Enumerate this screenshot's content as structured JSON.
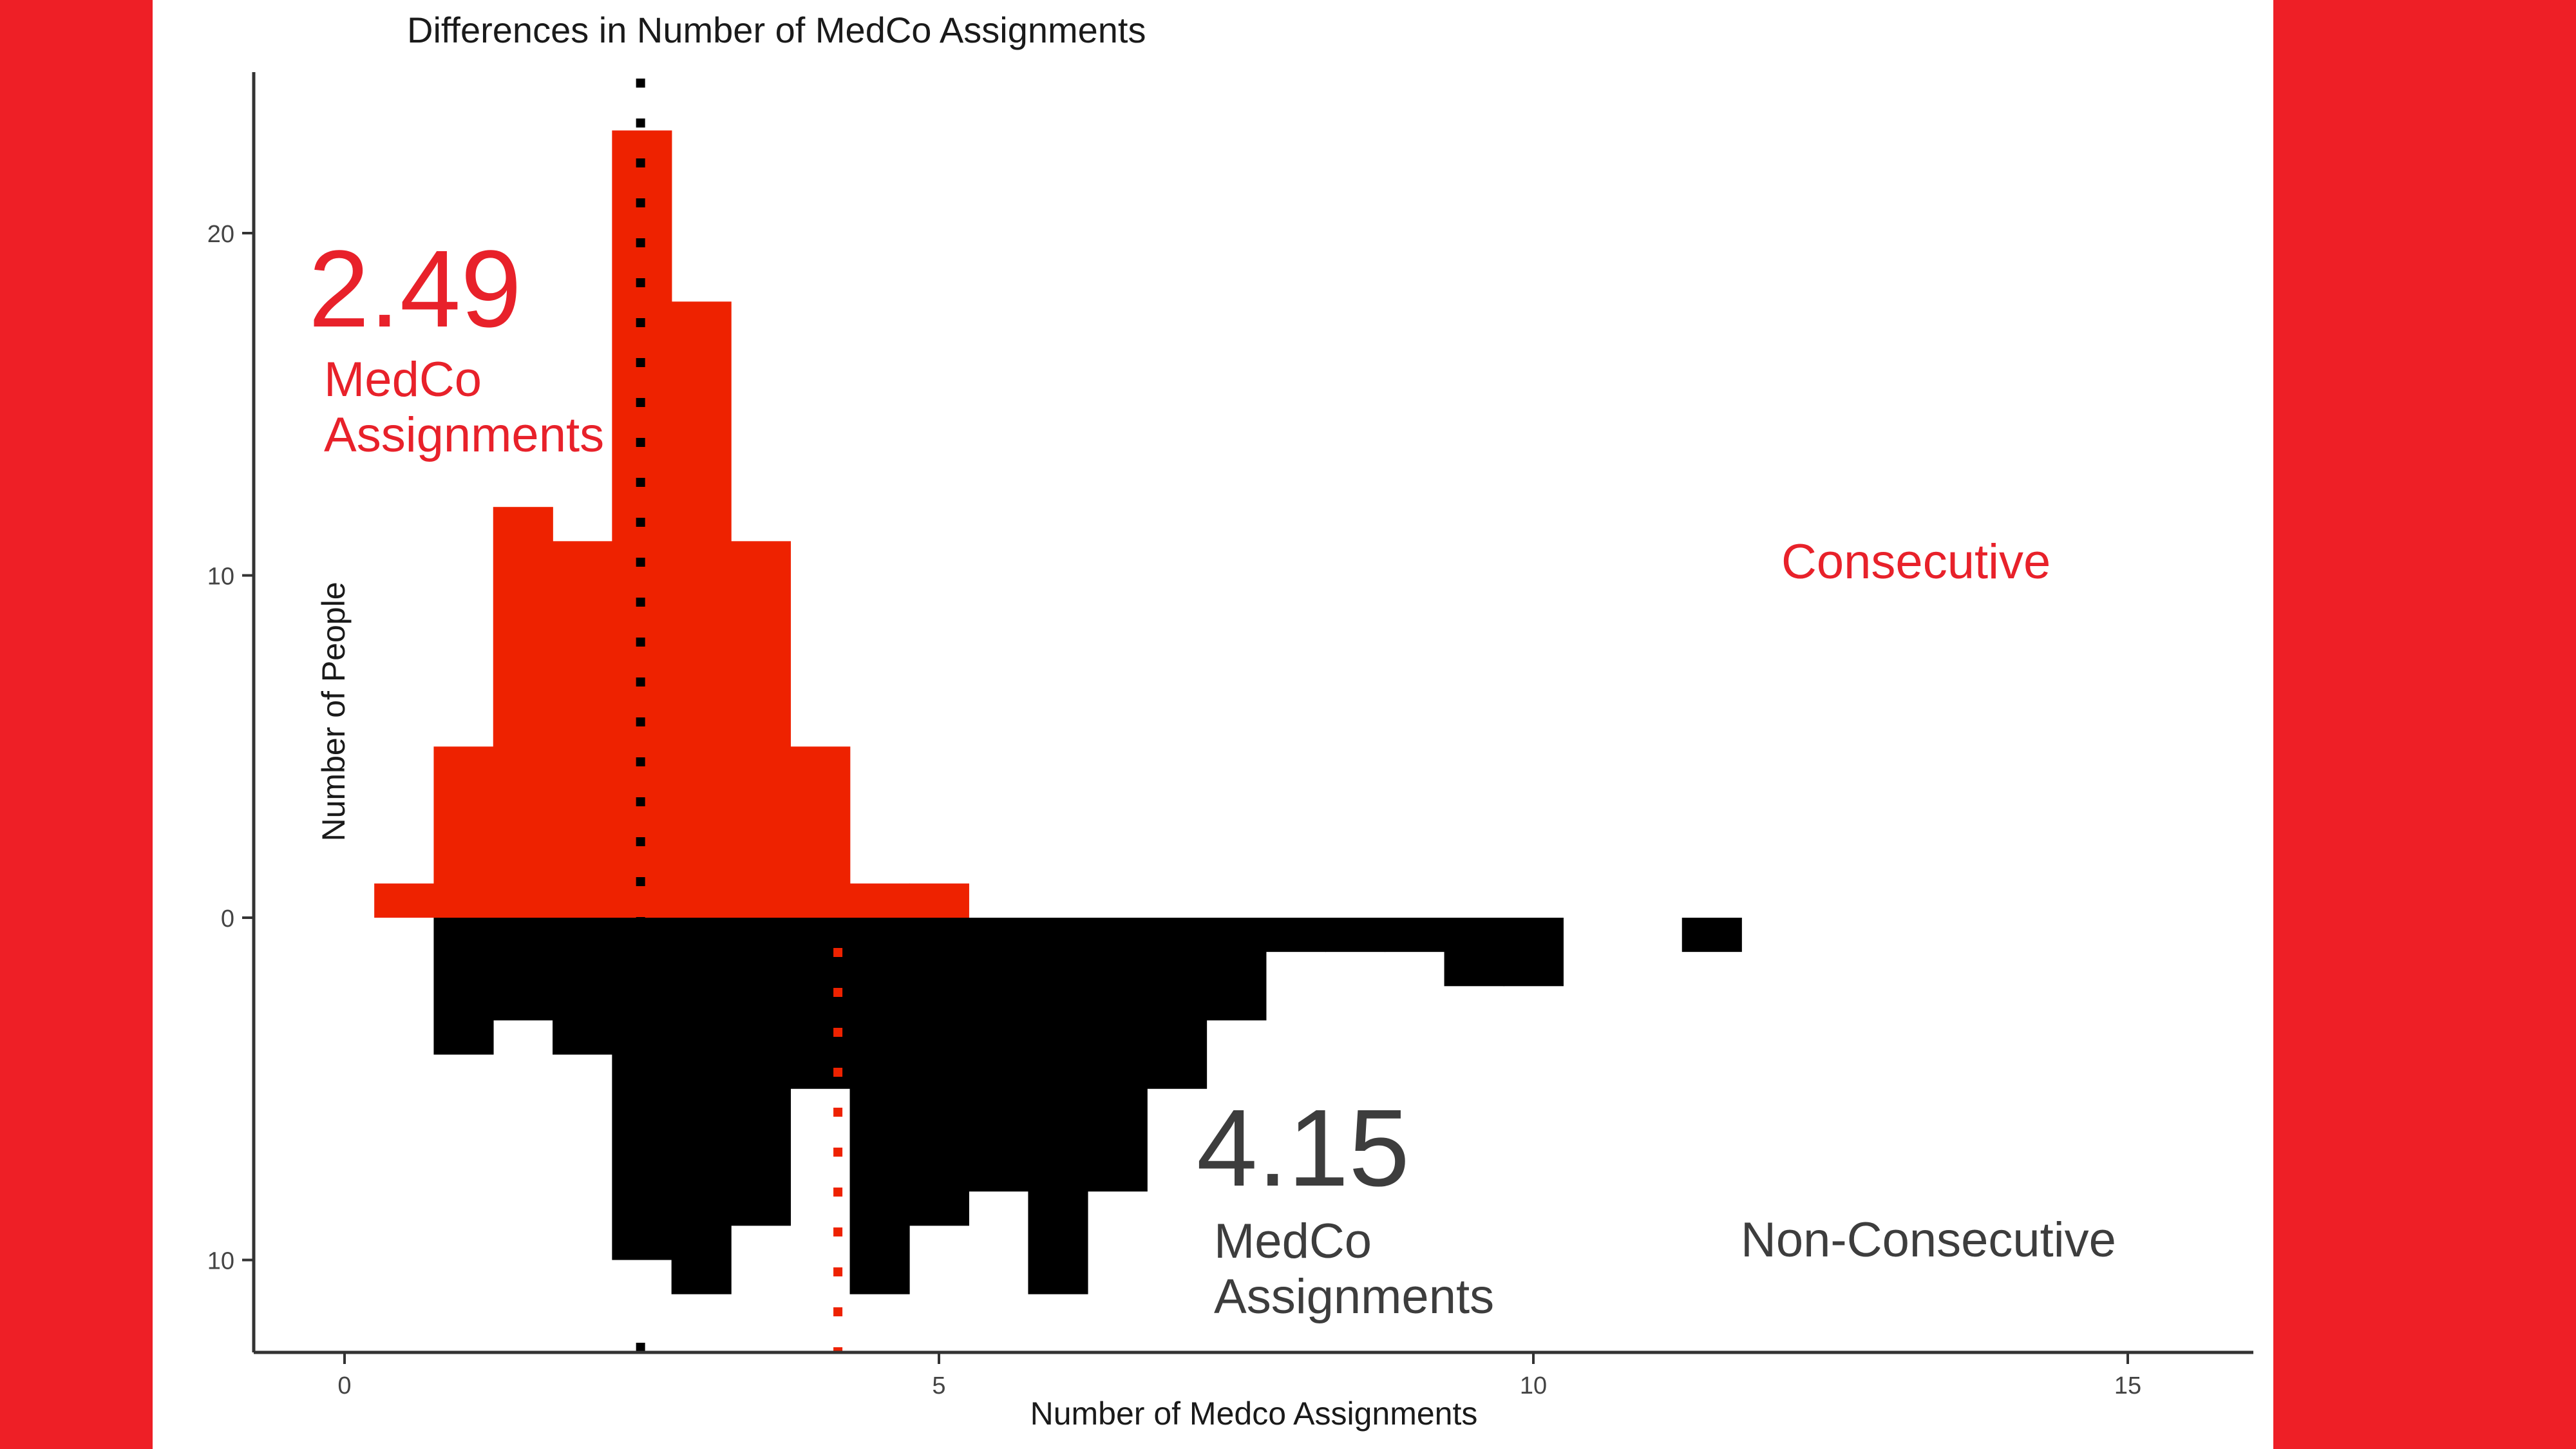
{
  "chart_data": {
    "type": "bar",
    "title": "Differences in Number of MedCo Assignments",
    "xlabel": "Number of Medco Assignments",
    "ylabel": "Number of People",
    "xlim": [
      -1.5,
      15.5
    ],
    "ylim_top": [
      0,
      25
    ],
    "ylim_bottom": [
      0,
      12.5
    ],
    "xticks": [
      0,
      5,
      10,
      15
    ],
    "yticks_top": [
      0,
      10,
      20
    ],
    "yticks_bottom": [
      10
    ],
    "grid": false,
    "legend": "none",
    "bin_width": 0.5,
    "series": [
      {
        "name": "Consecutive",
        "color": "#ee2200",
        "mean": 2.49,
        "mean_line_color": "#000000",
        "bins": [
          {
            "x": 0.5,
            "count": 1
          },
          {
            "x": 1.0,
            "count": 5
          },
          {
            "x": 1.5,
            "count": 12
          },
          {
            "x": 2.0,
            "count": 11
          },
          {
            "x": 2.5,
            "count": 23
          },
          {
            "x": 3.0,
            "count": 18
          },
          {
            "x": 3.5,
            "count": 11
          },
          {
            "x": 4.0,
            "count": 5
          },
          {
            "x": 4.5,
            "count": 1
          },
          {
            "x": 5.0,
            "count": 1
          }
        ]
      },
      {
        "name": "Non-Consecutive",
        "color": "#000000",
        "mean": 4.15,
        "mean_line_color": "#ee2200",
        "bins": [
          {
            "x": 1.0,
            "count": 4
          },
          {
            "x": 1.5,
            "count": 3
          },
          {
            "x": 2.0,
            "count": 4
          },
          {
            "x": 2.5,
            "count": 10
          },
          {
            "x": 3.0,
            "count": 11
          },
          {
            "x": 3.5,
            "count": 9
          },
          {
            "x": 4.0,
            "count": 5
          },
          {
            "x": 4.5,
            "count": 11
          },
          {
            "x": 5.0,
            "count": 9
          },
          {
            "x": 5.5,
            "count": 8
          },
          {
            "x": 6.0,
            "count": 11
          },
          {
            "x": 6.5,
            "count": 8
          },
          {
            "x": 7.0,
            "count": 5
          },
          {
            "x": 7.5,
            "count": 3
          },
          {
            "x": 8.0,
            "count": 1
          },
          {
            "x": 8.5,
            "count": 1
          },
          {
            "x": 9.0,
            "count": 1
          },
          {
            "x": 9.5,
            "count": 2
          },
          {
            "x": 10.0,
            "count": 2
          },
          {
            "x": 11.5,
            "count": 1
          }
        ]
      }
    ],
    "annotations": {
      "consecutive_mean_value": "2.49",
      "consecutive_mean_label_line1": "MedCo",
      "consecutive_mean_label_line2": "Assignments",
      "consecutive_group": "Consecutive",
      "nonconsecutive_mean_value": "4.15",
      "nonconsecutive_mean_label_line1": "MedCo",
      "nonconsecutive_mean_label_line2": "Assignments",
      "nonconsecutive_group": "Non-Consecutive"
    }
  },
  "colors": {
    "background_side": "#ee1f26",
    "annotation_red": "#e8212a",
    "annotation_dark": "#3d3d3d"
  }
}
